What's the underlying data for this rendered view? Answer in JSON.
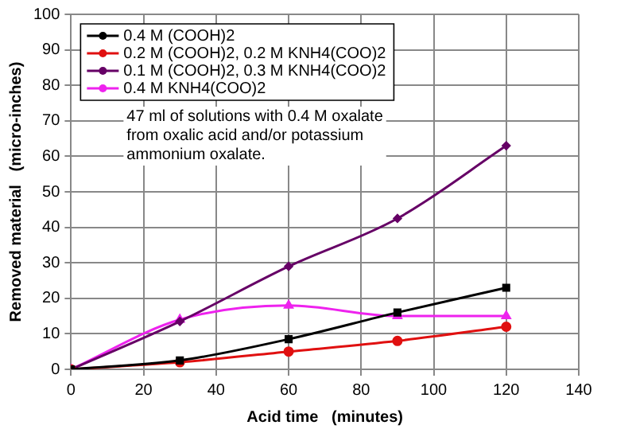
{
  "chart_data": {
    "type": "line",
    "xlabel": "Acid time   (minutes)",
    "ylabel": "Removed material   (micro-inches)",
    "x": [
      0,
      30,
      60,
      90,
      120
    ],
    "series": [
      {
        "name": "0.4 M (COOH)2",
        "color": "#000000",
        "marker": "square",
        "values": [
          0,
          2.5,
          8.5,
          16,
          23
        ]
      },
      {
        "name": "0.2 M (COOH)2, 0.2 M KNH4(COO)2",
        "color": "#e01010",
        "marker": "circle",
        "values": [
          0,
          2,
          5,
          8,
          12
        ]
      },
      {
        "name": "0.1 M (COOH)2, 0.3 M KNH4(COO)2",
        "color": "#660066",
        "marker": "diamond",
        "values": [
          0,
          13.5,
          29,
          42.5,
          63
        ]
      },
      {
        "name": "0.4 M KNH4(COO)2",
        "color": "#ee22ee",
        "marker": "triangle",
        "values": [
          0,
          14,
          18,
          15,
          15
        ]
      }
    ],
    "xlim": [
      0,
      140
    ],
    "xticks": [
      0,
      20,
      40,
      60,
      80,
      100,
      120,
      140
    ],
    "ylim": [
      0,
      100
    ],
    "yticks": [
      0,
      10,
      20,
      30,
      40,
      50,
      60,
      70,
      80,
      90,
      100
    ],
    "grid": true,
    "legend": "top left",
    "line_style": "solid",
    "annotations": [
      "47 ml of solutions with 0.4 M oxalate\nfrom oxalic acid and/or potassium\nammonium oxalate."
    ]
  }
}
